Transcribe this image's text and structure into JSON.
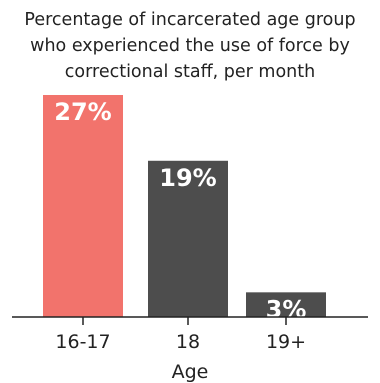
{
  "chart_data": {
    "type": "bar",
    "title_lines": [
      "Percentage of incarcerated age group",
      "who experienced the use of force by",
      "correctional staff, per month"
    ],
    "categories": [
      "16-17",
      "18",
      "19+"
    ],
    "values": [
      27,
      19,
      3
    ],
    "data_labels": [
      "27%",
      "19%",
      "3%"
    ],
    "colors": [
      "#f2736c",
      "#4d4d4d",
      "#4d4d4d"
    ],
    "xlabel": "Age",
    "ylabel": "",
    "ylim": [
      0,
      27
    ],
    "grid": false
  }
}
